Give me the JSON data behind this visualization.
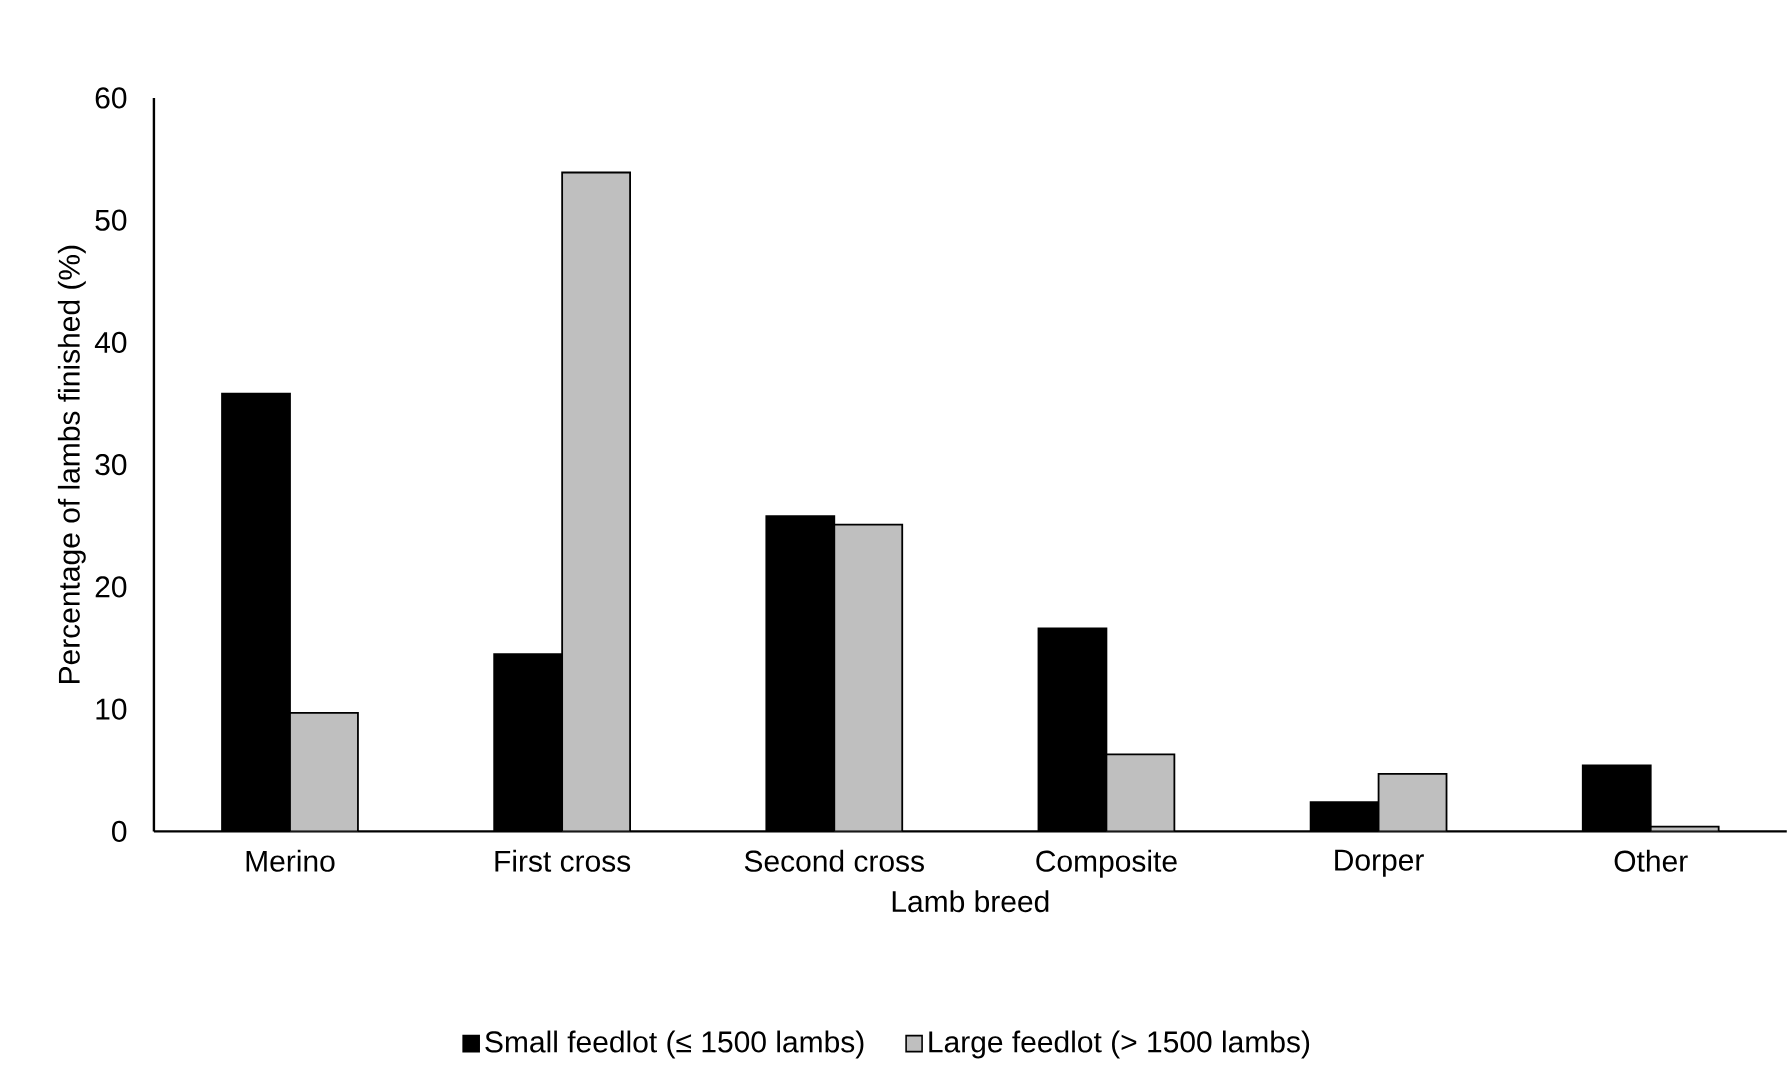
{
  "chart_data": {
    "type": "bar",
    "xlabel": "Lamb breed",
    "ylabel": "Percentage of lambs finished (%)",
    "categories": [
      "Merino",
      "First cross",
      "Second cross",
      "Composite",
      "Dorper",
      "Other"
    ],
    "series": [
      {
        "name": "Small feedlot (≤ 1500 lambs)",
        "color": "#000000",
        "values": [
          35.8,
          14.5,
          25.8,
          16.6,
          2.4,
          5.4
        ]
      },
      {
        "name": "Large feedlot (> 1500 lambs)",
        "color": "#bfbfbf",
        "values": [
          9.7,
          53.9,
          25.1,
          6.3,
          4.7,
          0.4
        ]
      }
    ],
    "ylim": [
      0,
      60
    ],
    "yticks": [
      0,
      10,
      20,
      30,
      40,
      50,
      60
    ],
    "legend": "bottom"
  }
}
